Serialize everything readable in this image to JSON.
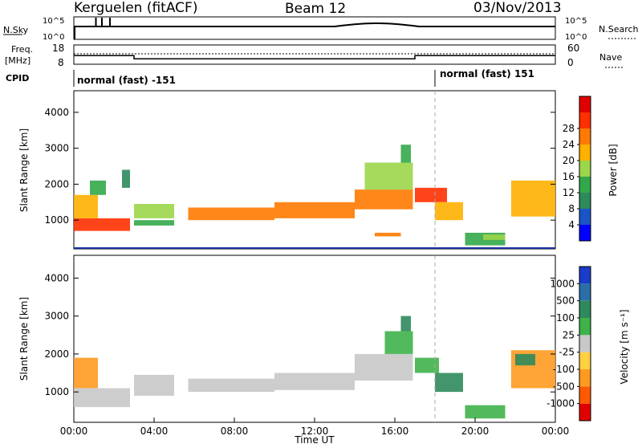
{
  "header": {
    "station": "Kerguelen (fitACF)",
    "beam": "Beam 12",
    "date": "03/Nov/2013"
  },
  "nsky_panel": {
    "left_label": "N.Sky",
    "right_label": "N.Search",
    "tick_top": "10^5",
    "tick_bottom": "10^0",
    "right_tick_top": "10^5",
    "right_tick_bottom": "10^0"
  },
  "freq_panel": {
    "left_label_line1": "Freq.",
    "left_label_line2": "[MHz]",
    "right_label": "Nave",
    "left_ticks": [
      "18",
      "8"
    ],
    "right_ticks": [
      "60",
      "0"
    ],
    "freq_steps": [
      {
        "t0": 0.0,
        "t1": 3.0,
        "mhz": 12.5
      },
      {
        "t0": 3.0,
        "t1": 17.0,
        "mhz": 10.8
      },
      {
        "t0": 17.0,
        "t1": 24.0,
        "mhz": 12.5
      }
    ]
  },
  "cpid": {
    "label": "CPID",
    "mode1": "normal (fast) -151",
    "mode2": "normal (fast) 151",
    "switch_time": 18.0
  },
  "chart_data": [
    {
      "type": "heatmap",
      "title": "",
      "ylabel": "Slant Range [km]",
      "xlabel": "",
      "xlim": [
        0,
        24
      ],
      "ylim": [
        200,
        4600
      ],
      "yticks": [
        1000,
        2000,
        3000,
        4000
      ],
      "colorbar": {
        "label": "Power [dB]",
        "ticks": [
          "4",
          "8",
          "12",
          "16",
          "20",
          "24",
          "28"
        ],
        "colors": [
          "#0000ff",
          "#1a55c8",
          "#2d8a5c",
          "#33a84a",
          "#9cd64a",
          "#ffb000",
          "#ff7a00",
          "#ff3000",
          "#e00000"
        ]
      },
      "bands": [
        {
          "t0": 0.0,
          "t1": 2.8,
          "r0": 700,
          "r1": 1050,
          "level": 7
        },
        {
          "t0": 0.0,
          "t1": 1.2,
          "r0": 1050,
          "r1": 1700,
          "level": 5
        },
        {
          "t0": 0.8,
          "t1": 1.6,
          "r0": 1700,
          "r1": 2100,
          "level": 3
        },
        {
          "t0": 2.4,
          "t1": 2.8,
          "r0": 1900,
          "r1": 2400,
          "level": 2
        },
        {
          "t0": 3.0,
          "t1": 5.0,
          "r0": 1050,
          "r1": 1450,
          "level": 4
        },
        {
          "t0": 3.0,
          "t1": 5.0,
          "r0": 850,
          "r1": 1000,
          "level": 3
        },
        {
          "t0": 5.7,
          "t1": 10.0,
          "r0": 1000,
          "r1": 1350,
          "level": 6
        },
        {
          "t0": 10.0,
          "t1": 14.0,
          "r0": 1050,
          "r1": 1500,
          "level": 6
        },
        {
          "t0": 14.0,
          "t1": 16.9,
          "r0": 1300,
          "r1": 1850,
          "level": 6
        },
        {
          "t0": 14.5,
          "t1": 16.9,
          "r0": 1850,
          "r1": 2600,
          "level": 4
        },
        {
          "t0": 16.3,
          "t1": 16.8,
          "r0": 2600,
          "r1": 3100,
          "level": 3
        },
        {
          "t0": 17.0,
          "t1": 18.6,
          "r0": 1500,
          "r1": 1900,
          "level": 7
        },
        {
          "t0": 18.0,
          "t1": 19.4,
          "r0": 1000,
          "r1": 1500,
          "level": 5
        },
        {
          "t0": 15.0,
          "t1": 16.3,
          "r0": 550,
          "r1": 650,
          "level": 6
        },
        {
          "t0": 19.5,
          "t1": 21.5,
          "r0": 300,
          "r1": 650,
          "level": 3
        },
        {
          "t0": 21.8,
          "t1": 24.0,
          "r0": 1100,
          "r1": 2100,
          "level": 5
        },
        {
          "t0": 20.4,
          "t1": 21.5,
          "r0": 450,
          "r1": 600,
          "level": 4
        }
      ]
    },
    {
      "type": "heatmap",
      "title": "",
      "ylabel": "Slant Range [km]",
      "xlabel": "Time UT",
      "xlim": [
        0,
        24
      ],
      "ylim": [
        200,
        4600
      ],
      "yticks": [
        1000,
        2000,
        3000,
        4000
      ],
      "xticklabels": [
        "00:00",
        "04:00",
        "08:00",
        "12:00",
        "16:00",
        "20:00",
        "00:00"
      ],
      "colorbar": {
        "label": "Velocity [m s⁻¹]",
        "ticks": [
          "1000",
          "500",
          "100",
          "25",
          "-25",
          "-100",
          "-500",
          "-1000"
        ],
        "colors": [
          "#1a3cc8",
          "#2a6fa8",
          "#2e8a5c",
          "#3fb24a",
          "#c8c8c8",
          "#ffd040",
          "#ff9a20",
          "#ff5a00",
          "#e00000"
        ]
      },
      "bands": [
        {
          "t0": 0.0,
          "t1": 2.8,
          "r0": 600,
          "r1": 1100,
          "level": 4
        },
        {
          "t0": 0.0,
          "t1": 1.2,
          "r0": 1100,
          "r1": 1900,
          "level": 6
        },
        {
          "t0": 3.0,
          "t1": 5.0,
          "r0": 900,
          "r1": 1450,
          "level": 4
        },
        {
          "t0": 5.7,
          "t1": 10.0,
          "r0": 1000,
          "r1": 1350,
          "level": 4
        },
        {
          "t0": 10.0,
          "t1": 14.0,
          "r0": 1050,
          "r1": 1500,
          "level": 4
        },
        {
          "t0": 14.0,
          "t1": 16.9,
          "r0": 1300,
          "r1": 2000,
          "level": 4
        },
        {
          "t0": 15.5,
          "t1": 16.9,
          "r0": 2000,
          "r1": 2600,
          "level": 3
        },
        {
          "t0": 16.3,
          "t1": 16.8,
          "r0": 2600,
          "r1": 3000,
          "level": 2
        },
        {
          "t0": 17.0,
          "t1": 18.2,
          "r0": 1500,
          "r1": 1900,
          "level": 3
        },
        {
          "t0": 18.0,
          "t1": 19.4,
          "r0": 1000,
          "r1": 1500,
          "level": 2
        },
        {
          "t0": 19.5,
          "t1": 21.5,
          "r0": 300,
          "r1": 650,
          "level": 3
        },
        {
          "t0": 21.8,
          "t1": 24.0,
          "r0": 1100,
          "r1": 2100,
          "level": 6
        },
        {
          "t0": 22.0,
          "t1": 23.0,
          "r0": 1700,
          "r1": 2000,
          "level": 2
        }
      ]
    }
  ]
}
